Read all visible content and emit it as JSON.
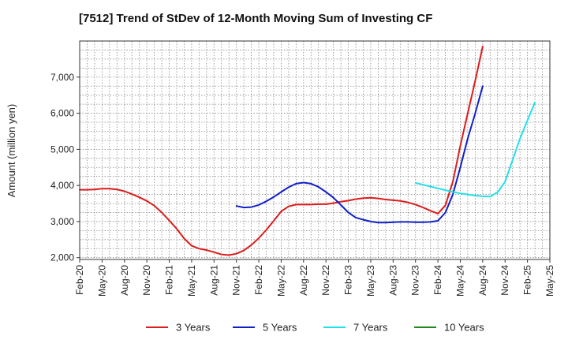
{
  "chart_data": {
    "type": "line",
    "title": "[7512]  Trend of StDev of 12-Month Moving Sum of Investing CF",
    "xlabel": "",
    "ylabel": "Amount (million yen)",
    "ylim": [
      1950,
      8000
    ],
    "yticks": [
      2000,
      3000,
      4000,
      5000,
      6000,
      7000
    ],
    "ytick_labels": [
      "2,000",
      "3,000",
      "4,000",
      "5,000",
      "6,000",
      "7,000"
    ],
    "xticks": [
      "Feb-20",
      "May-20",
      "Aug-20",
      "Nov-20",
      "Feb-21",
      "May-21",
      "Aug-21",
      "Nov-21",
      "Feb-22",
      "May-22",
      "Aug-22",
      "Nov-22",
      "Feb-23",
      "May-23",
      "Aug-23",
      "Nov-23",
      "Feb-24",
      "May-24",
      "Aug-24",
      "Nov-24",
      "Feb-25",
      "May-25"
    ],
    "grid": true,
    "legend_position": "bottom",
    "series": [
      {
        "name": "3 Years",
        "color": "#dd1c1c",
        "start_month": 0,
        "values": [
          3880,
          3880,
          3890,
          3910,
          3910,
          3890,
          3840,
          3760,
          3670,
          3570,
          3440,
          3250,
          3030,
          2800,
          2530,
          2330,
          2250,
          2210,
          2150,
          2090,
          2070,
          2110,
          2200,
          2350,
          2540,
          2770,
          3020,
          3280,
          3420,
          3470,
          3470,
          3470,
          3480,
          3480,
          3510,
          3550,
          3580,
          3620,
          3650,
          3660,
          3640,
          3610,
          3590,
          3570,
          3530,
          3470,
          3390,
          3300,
          3220,
          3450,
          4100,
          5100,
          6000,
          6900,
          7850
        ]
      },
      {
        "name": "5 Years",
        "color": "#1020c8",
        "start_month": 21,
        "values": [
          3430,
          3390,
          3400,
          3460,
          3560,
          3680,
          3820,
          3950,
          4050,
          4080,
          4050,
          3960,
          3820,
          3660,
          3460,
          3250,
          3110,
          3050,
          3000,
          2970,
          2970,
          2980,
          2990,
          2990,
          2980,
          2980,
          2990,
          3020,
          3250,
          3750,
          4500,
          5300,
          6000,
          6750
        ]
      },
      {
        "name": "7 Years",
        "color": "#22e0e8",
        "start_month": 45,
        "values": [
          4070,
          4020,
          3970,
          3920,
          3870,
          3820,
          3780,
          3750,
          3720,
          3700,
          3690,
          3810,
          4100,
          4700,
          5300,
          5800,
          6300
        ]
      },
      {
        "name": "10 Years",
        "color": "#1d8a1d",
        "start_month": 0,
        "values": []
      }
    ]
  }
}
